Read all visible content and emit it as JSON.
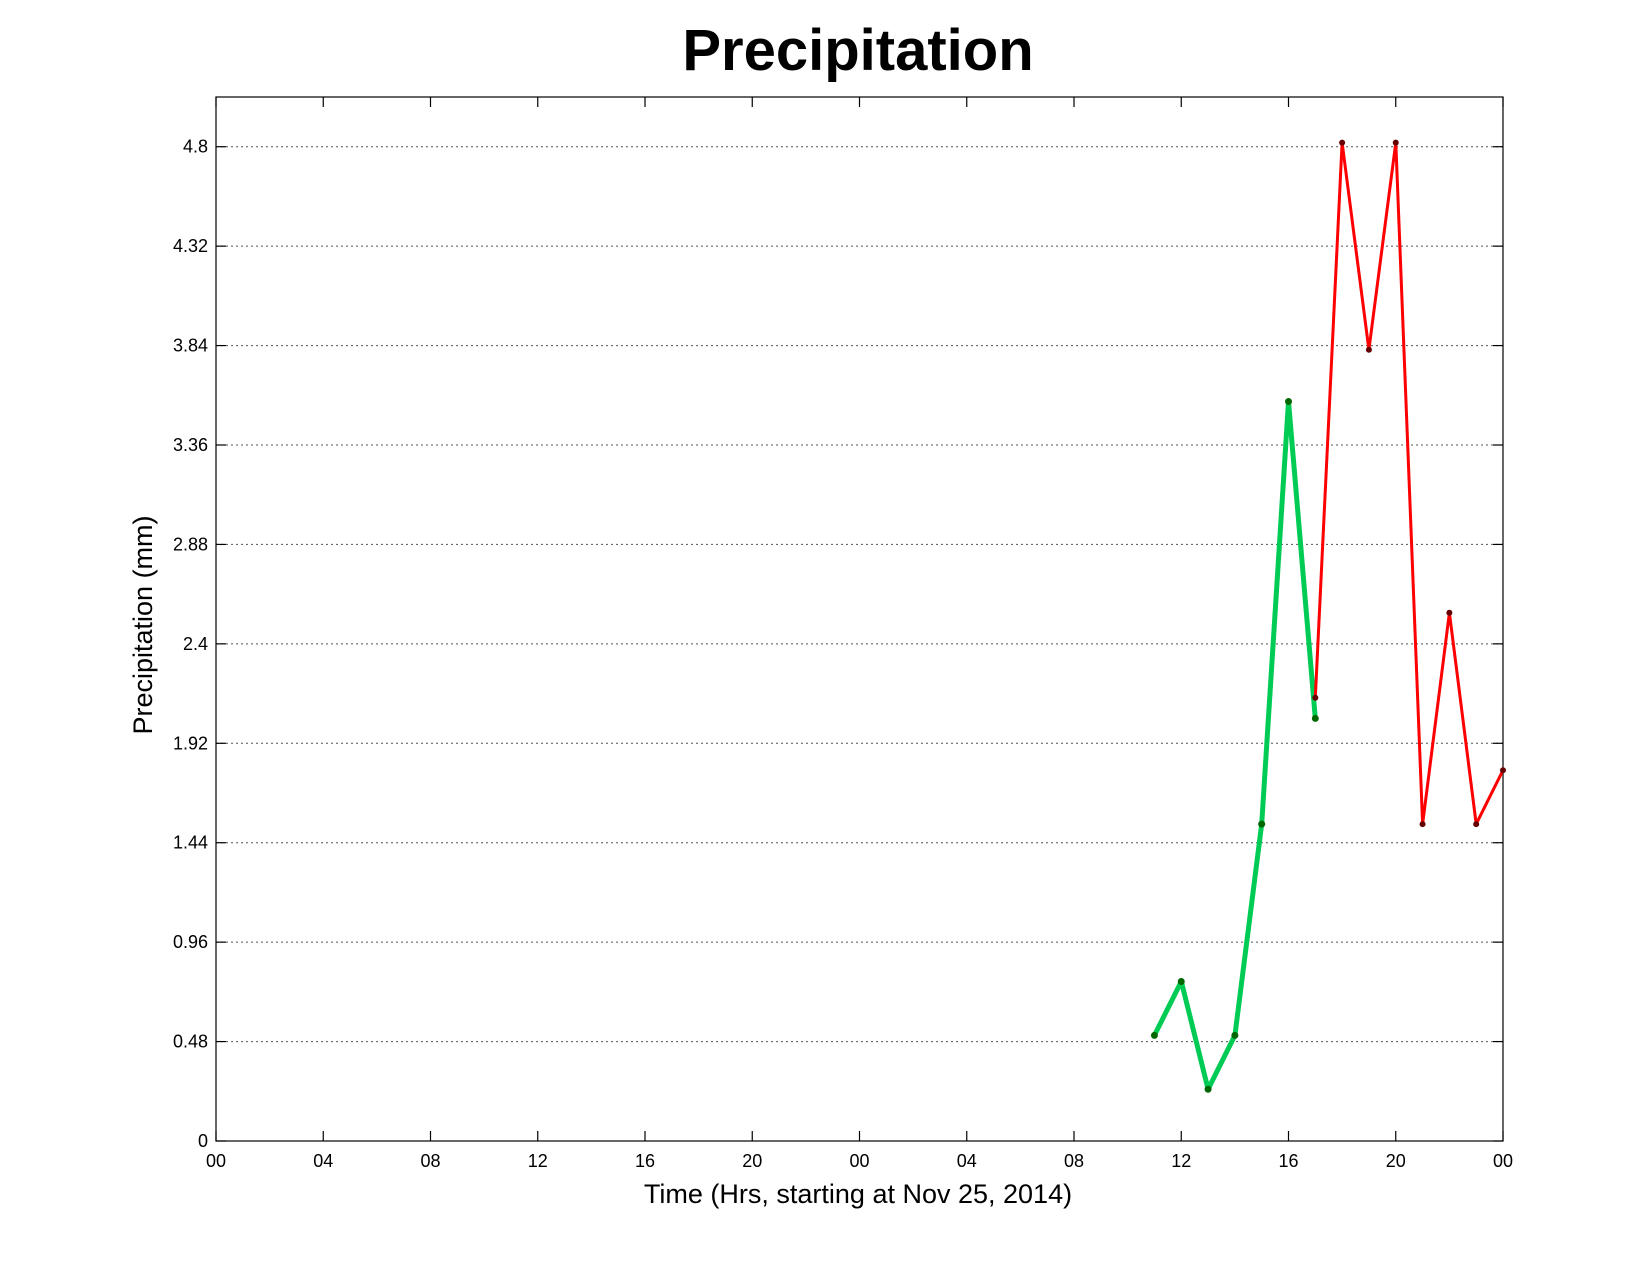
{
  "chart_data": {
    "type": "line",
    "title": "Precipitation",
    "xlabel": "Time (Hrs, starting at Nov 25, 2014)",
    "ylabel": "Precipitation (mm)",
    "xlim": [
      0,
      48
    ],
    "ylim": [
      0,
      5.04
    ],
    "grid": "y-dotted",
    "x_ticks": [
      {
        "x": 0,
        "label": "00"
      },
      {
        "x": 4,
        "label": "04"
      },
      {
        "x": 8,
        "label": "08"
      },
      {
        "x": 12,
        "label": "12"
      },
      {
        "x": 16,
        "label": "16"
      },
      {
        "x": 20,
        "label": "20"
      },
      {
        "x": 24,
        "label": "00"
      },
      {
        "x": 28,
        "label": "04"
      },
      {
        "x": 32,
        "label": "08"
      },
      {
        "x": 36,
        "label": "12"
      },
      {
        "x": 40,
        "label": "16"
      },
      {
        "x": 44,
        "label": "20"
      },
      {
        "x": 48,
        "label": "00"
      }
    ],
    "y_ticks": [
      {
        "y": 0,
        "label": "0"
      },
      {
        "y": 0.48,
        "label": "0.48"
      },
      {
        "y": 0.96,
        "label": "0.96"
      },
      {
        "y": 1.44,
        "label": "1.44"
      },
      {
        "y": 1.92,
        "label": "1.92"
      },
      {
        "y": 2.4,
        "label": "2.4"
      },
      {
        "y": 2.88,
        "label": "2.88"
      },
      {
        "y": 3.36,
        "label": "3.36"
      },
      {
        "y": 3.84,
        "label": "3.84"
      },
      {
        "y": 4.32,
        "label": "4.32"
      },
      {
        "y": 4.8,
        "label": "4.8"
      }
    ],
    "series": [
      {
        "color": "#00cc55",
        "marker_color": "#006600",
        "style": "thick",
        "x": [
          35,
          36,
          37,
          38,
          39,
          40,
          41
        ],
        "y": [
          0.51,
          0.77,
          0.25,
          0.51,
          1.53,
          3.57,
          2.04
        ]
      },
      {
        "color": "#ff0000",
        "marker_color": "#660000",
        "style": "thin",
        "x": [
          41,
          42,
          43,
          44,
          45,
          46,
          47,
          48
        ],
        "y": [
          2.14,
          4.82,
          3.82,
          4.82,
          1.53,
          2.55,
          1.53,
          1.79
        ]
      }
    ]
  }
}
